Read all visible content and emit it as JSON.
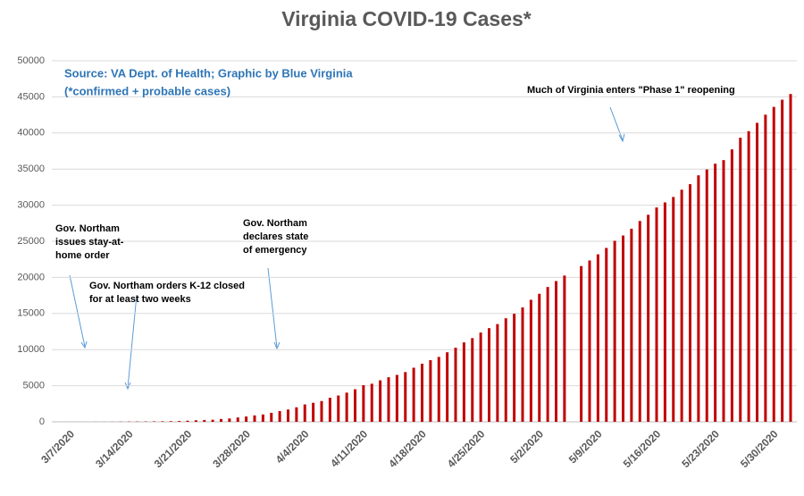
{
  "chart_data": {
    "type": "bar",
    "title": "Virginia COVID-19 Cases*",
    "source_lines": [
      "Source: VA Dept. of Health; Graphic by Blue Virginia",
      "(*confirmed + probable cases)"
    ],
    "annotations": [
      {
        "lines": [
          "Gov. Northam",
          "issues stay-at-",
          "home order"
        ]
      },
      {
        "lines": [
          "Gov. Northam orders K-12 closed",
          "for at least two weeks"
        ]
      },
      {
        "lines": [
          "Gov. Northam",
          "declares state",
          "of emergency"
        ]
      },
      {
        "lines": [
          "Much of Virginia enters \"Phase 1\" reopening"
        ]
      }
    ],
    "categories": [
      "3/7/2020",
      null,
      null,
      null,
      null,
      null,
      null,
      "3/14/2020",
      null,
      null,
      null,
      null,
      null,
      null,
      "3/21/2020",
      null,
      null,
      null,
      null,
      null,
      null,
      "3/28/2020",
      null,
      null,
      null,
      null,
      null,
      null,
      "4/4/2020",
      null,
      null,
      null,
      null,
      null,
      null,
      "4/11/2020",
      null,
      null,
      null,
      null,
      null,
      null,
      "4/18/2020",
      null,
      null,
      null,
      null,
      null,
      null,
      "4/25/2020",
      null,
      null,
      null,
      null,
      null,
      null,
      "5/2/2020",
      null,
      null,
      null,
      null,
      null,
      null,
      "5/9/2020",
      null,
      null,
      null,
      null,
      null,
      null,
      "5/16/2020",
      null,
      null,
      null,
      null,
      null,
      null,
      "5/23/2020",
      null,
      null,
      null,
      null,
      null,
      null,
      "5/30/2020",
      null,
      null
    ],
    "values": [
      2,
      2,
      5,
      8,
      9,
      17,
      30,
      41,
      45,
      51,
      67,
      77,
      94,
      114,
      152,
      219,
      254,
      290,
      391,
      460,
      604,
      739,
      890,
      1020,
      1250,
      1484,
      1706,
      2012,
      2407,
      2637,
      2878,
      3333,
      3645,
      4042,
      4509,
      5077,
      5274,
      5747,
      6171,
      6500,
      6889,
      7491,
      8053,
      8537,
      8990,
      9630,
      10266,
      10998,
      11594,
      12366,
      12970,
      13535,
      14339,
      14961,
      15846,
      16901,
      17731,
      18671,
      19492,
      20256,
      null,
      21570,
      22342,
      23196,
      24081,
      25070,
      25800,
      26746,
      27813,
      28672,
      29683,
      30388,
      31140,
      32145,
      32908,
      34137,
      34950,
      35749,
      36244,
      37727,
      39342,
      40249,
      41401,
      42533,
      43611,
      44607,
      45398
    ],
    "color": "#c00000",
    "ylim": [
      0,
      50000
    ],
    "yticks": [
      0,
      5000,
      10000,
      15000,
      20000,
      25000,
      30000,
      35000,
      40000,
      45000,
      50000
    ],
    "grid": true
  }
}
